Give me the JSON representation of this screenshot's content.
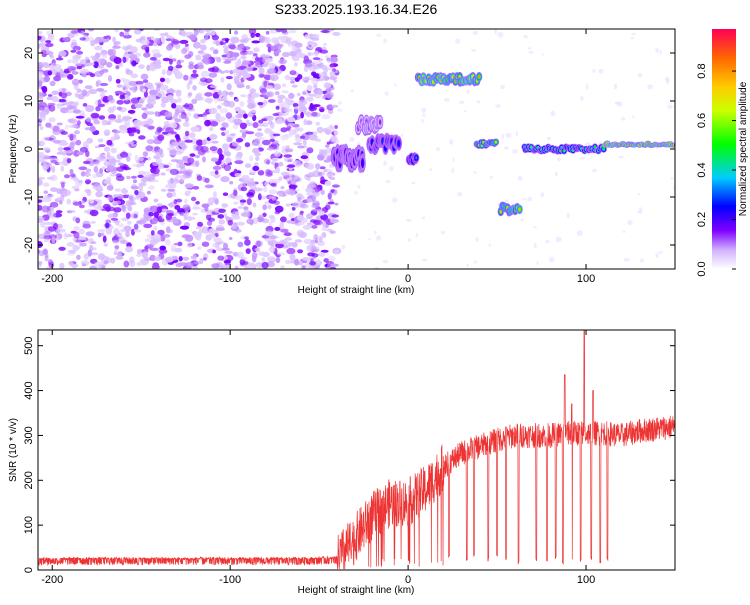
{
  "chart_data": [
    {
      "type": "heatmap",
      "title": "S233.2025.193.16.34.E26",
      "xlabel": "Height of straight line (km)",
      "ylabel": "Frequency (Hz)",
      "xlim": [
        -208,
        150
      ],
      "ylim": [
        -25,
        25
      ],
      "x_ticks": [
        -200,
        -100,
        0,
        100
      ],
      "y_ticks": [
        20,
        10,
        0,
        -10,
        -20
      ],
      "colorbar": {
        "label": "Normalized spectral amplitude",
        "range": [
          0,
          0.97
        ],
        "ticks": [
          0.0,
          0.2,
          0.4,
          0.6,
          0.8
        ]
      },
      "noise_region": {
        "x_range": [
          -208,
          -40
        ],
        "y_range": [
          -25,
          25
        ],
        "amplitude": 0.1
      },
      "features": [
        {
          "x_range": [
            -42,
            -25
          ],
          "y_center": -2,
          "y_width": 4,
          "amplitude": 0.25
        },
        {
          "x_range": [
            -28,
            -15
          ],
          "y_center": 5,
          "y_width": 3,
          "amplitude": 0.15
        },
        {
          "x_range": [
            -22,
            -5
          ],
          "y_center": 1,
          "y_width": 3,
          "amplitude": 0.3
        },
        {
          "x_range": [
            0,
            5
          ],
          "y_center": -2,
          "y_width": 2,
          "amplitude": 0.4
        },
        {
          "x_range": [
            5,
            40
          ],
          "y_center": 14.5,
          "y_width": 2,
          "amplitude": 0.85
        },
        {
          "x_range": [
            38,
            50
          ],
          "y_center": 1,
          "y_width": 1.5,
          "amplitude": 0.75
        },
        {
          "x_range": [
            52,
            63
          ],
          "y_center": -12.5,
          "y_width": 2,
          "amplitude": 0.8
        },
        {
          "x_range": [
            65,
            110
          ],
          "y_center": 0,
          "y_width": 1.5,
          "amplitude": 0.55
        },
        {
          "x_range": [
            110,
            150
          ],
          "y_center": 1,
          "y_width": 1,
          "amplitude": 0.95
        }
      ]
    },
    {
      "type": "line",
      "xlabel": "Height of straight line (km)",
      "ylabel": "SNR (10 * v/v)",
      "xlim": [
        -208,
        150
      ],
      "ylim": [
        0,
        535
      ],
      "x_ticks": [
        -200,
        -100,
        0,
        100
      ],
      "y_ticks": [
        0,
        100,
        200,
        300,
        400,
        500
      ],
      "color": "#ee3333",
      "series": [
        {
          "x": [
            -208,
            -180,
            -150,
            -120,
            -90,
            -60,
            -40,
            -30,
            -20,
            -10,
            0,
            10,
            20,
            30,
            40,
            50,
            60,
            70,
            80,
            90,
            100,
            110,
            120,
            130,
            140,
            150
          ],
          "values": [
            20,
            20,
            20,
            20,
            20,
            20,
            22,
            70,
            120,
            150,
            150,
            180,
            230,
            260,
            275,
            290,
            300,
            300,
            300,
            305,
            305,
            305,
            300,
            310,
            315,
            320
          ]
        }
      ],
      "dips": [
        {
          "x": 23,
          "min": 25
        },
        {
          "x": 33,
          "min": 20
        },
        {
          "x": 37,
          "min": 30
        },
        {
          "x": 45,
          "min": 20
        },
        {
          "x": 50,
          "min": 30
        },
        {
          "x": 55,
          "min": 20
        },
        {
          "x": 62,
          "min": 10
        },
        {
          "x": 72,
          "min": 20
        },
        {
          "x": 78,
          "min": 15
        },
        {
          "x": 83,
          "min": 20
        },
        {
          "x": 87,
          "min": 10
        },
        {
          "x": 92,
          "min": 20
        },
        {
          "x": 97,
          "min": 15
        },
        {
          "x": 103,
          "min": 20
        },
        {
          "x": 108,
          "min": 15
        },
        {
          "x": 112,
          "min": 20
        }
      ],
      "spikes": [
        {
          "x": 88,
          "max": 435
        },
        {
          "x": 92,
          "max": 370
        },
        {
          "x": 99,
          "max": 535
        },
        {
          "x": 104,
          "max": 400
        }
      ]
    }
  ]
}
